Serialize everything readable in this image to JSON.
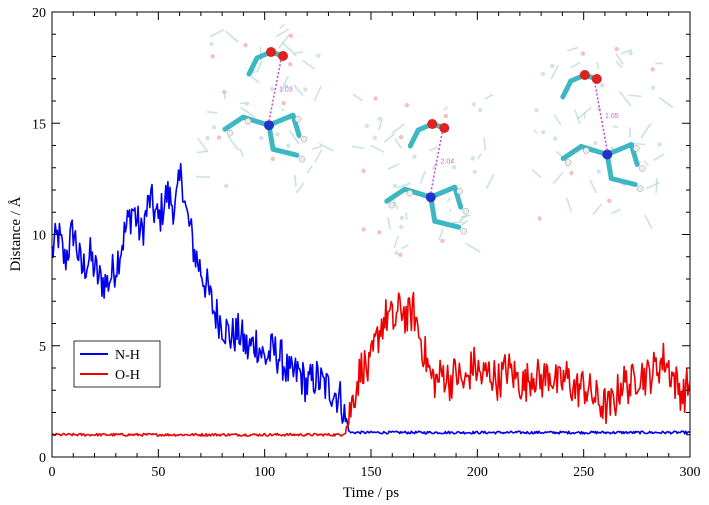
{
  "chart_data": {
    "type": "line",
    "xlabel": "Time / ps",
    "ylabel": "Distance / Å",
    "xlim": [
      0,
      300
    ],
    "ylim": [
      0,
      20
    ],
    "xticks": [
      0,
      50,
      100,
      150,
      200,
      250,
      300
    ],
    "yticks": [
      0,
      5,
      10,
      15,
      20
    ],
    "xtick_labels": [
      "0",
      "50",
      "100",
      "150",
      "200",
      "250",
      "300"
    ],
    "ytick_labels": [
      "0",
      "5",
      "10",
      "15",
      "20"
    ],
    "grid": false,
    "legend_position": "lower-left",
    "series": [
      {
        "name": "N-H",
        "color": "#0000ee",
        "points": [
          [
            0,
            9.2
          ],
          [
            3,
            10.0
          ],
          [
            6,
            8.8
          ],
          [
            10,
            10.2
          ],
          [
            14,
            8.4
          ],
          [
            18,
            9.0
          ],
          [
            22,
            8.0
          ],
          [
            26,
            7.8
          ],
          [
            30,
            8.6
          ],
          [
            34,
            10.0
          ],
          [
            38,
            11.2
          ],
          [
            42,
            10.0
          ],
          [
            46,
            11.6
          ],
          [
            50,
            10.6
          ],
          [
            54,
            11.8
          ],
          [
            58,
            11.2
          ],
          [
            61,
            12.8
          ],
          [
            63,
            11.0
          ],
          [
            65,
            10.2
          ],
          [
            67,
            9.2
          ],
          [
            70,
            8.4
          ],
          [
            73,
            7.6
          ],
          [
            76,
            6.6
          ],
          [
            80,
            6.0
          ],
          [
            84,
            5.4
          ],
          [
            88,
            5.6
          ],
          [
            92,
            4.8
          ],
          [
            96,
            5.2
          ],
          [
            100,
            4.4
          ],
          [
            104,
            4.8
          ],
          [
            108,
            4.4
          ],
          [
            112,
            3.6
          ],
          [
            116,
            3.8
          ],
          [
            120,
            3.2
          ],
          [
            124,
            3.6
          ],
          [
            128,
            3.2
          ],
          [
            132,
            3.0
          ],
          [
            136,
            2.6
          ],
          [
            138,
            1.6
          ],
          [
            140,
            1.1
          ],
          [
            145,
            1.1
          ],
          [
            155,
            1.1
          ],
          [
            170,
            1.1
          ],
          [
            185,
            1.1
          ],
          [
            200,
            1.1
          ],
          [
            215,
            1.1
          ],
          [
            230,
            1.1
          ],
          [
            245,
            1.1
          ],
          [
            260,
            1.1
          ],
          [
            275,
            1.1
          ],
          [
            290,
            1.1
          ],
          [
            300,
            1.1
          ]
        ]
      },
      {
        "name": "O-H",
        "color": "#ee0000",
        "points": [
          [
            0,
            1.0
          ],
          [
            20,
            1.0
          ],
          [
            40,
            1.0
          ],
          [
            60,
            1.0
          ],
          [
            80,
            1.0
          ],
          [
            100,
            1.0
          ],
          [
            120,
            1.0
          ],
          [
            136,
            1.0
          ],
          [
            138,
            1.1
          ],
          [
            140,
            2.0
          ],
          [
            143,
            3.2
          ],
          [
            146,
            4.2
          ],
          [
            149,
            3.8
          ],
          [
            152,
            5.0
          ],
          [
            155,
            6.0
          ],
          [
            158,
            6.4
          ],
          [
            161,
            6.0
          ],
          [
            164,
            6.8
          ],
          [
            167,
            6.2
          ],
          [
            170,
            6.6
          ],
          [
            173,
            5.4
          ],
          [
            176,
            4.4
          ],
          [
            178,
            3.6
          ],
          [
            181,
            3.4
          ],
          [
            184,
            3.8
          ],
          [
            187,
            3.4
          ],
          [
            190,
            3.8
          ],
          [
            194,
            3.2
          ],
          [
            198,
            4.2
          ],
          [
            202,
            3.6
          ],
          [
            206,
            3.8
          ],
          [
            210,
            3.4
          ],
          [
            214,
            4.0
          ],
          [
            218,
            3.6
          ],
          [
            222,
            3.2
          ],
          [
            226,
            3.8
          ],
          [
            230,
            3.4
          ],
          [
            234,
            3.8
          ],
          [
            238,
            3.2
          ],
          [
            242,
            3.6
          ],
          [
            246,
            3.0
          ],
          [
            250,
            3.2
          ],
          [
            254,
            2.8
          ],
          [
            258,
            2.4
          ],
          [
            262,
            2.2
          ],
          [
            265,
            2.6
          ],
          [
            268,
            3.4
          ],
          [
            272,
            3.2
          ],
          [
            276,
            3.8
          ],
          [
            280,
            3.6
          ],
          [
            284,
            4.0
          ],
          [
            288,
            4.4
          ],
          [
            291,
            3.8
          ],
          [
            294,
            3.2
          ],
          [
            297,
            2.8
          ],
          [
            300,
            3.4
          ]
        ]
      }
    ],
    "insets": [
      {
        "name": "snapshot-1",
        "annotation": "1.03"
      },
      {
        "name": "snapshot-2",
        "annotation": "2.04"
      },
      {
        "name": "snapshot-3",
        "annotation": "1.05"
      }
    ]
  }
}
